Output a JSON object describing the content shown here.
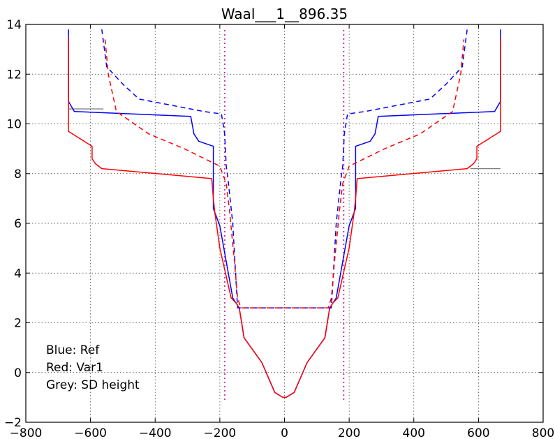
{
  "chart_data": {
    "type": "line",
    "title": "Waal___1__896.35",
    "xlabel": "",
    "ylabel": "",
    "xlim": [
      -800,
      800
    ],
    "ylim": [
      -2,
      14
    ],
    "xticks": [
      -800,
      -600,
      -400,
      -200,
      0,
      200,
      400,
      600,
      800
    ],
    "yticks": [
      -2,
      0,
      2,
      4,
      6,
      8,
      10,
      12,
      14
    ],
    "grid": true,
    "annotations": [
      "Blue: Ref",
      "Red: Var1",
      "Grey: SD height"
    ],
    "annotation_position": "bottom-left",
    "colors": {
      "ref": "#0000ff",
      "var1": "#ff0000",
      "sd": "#808080",
      "marker": "#cc33aa"
    },
    "series": [
      {
        "name": "Ref",
        "color": "#0000ff",
        "style": "solid",
        "x": [
          -668,
          -668,
          -668,
          -650,
          -290,
          -280,
          -265,
          -220,
          -220,
          -200,
          -160,
          -150,
          -140,
          -125,
          -70,
          -30,
          -5,
          5,
          30,
          70,
          125,
          140,
          150,
          160,
          200,
          220,
          220,
          265,
          280,
          290,
          650,
          668,
          668,
          668
        ],
        "y": [
          13.8,
          11.1,
          10.9,
          10.5,
          10.3,
          9.6,
          9.3,
          9.1,
          6.6,
          5.9,
          3.0,
          2.8,
          2.6,
          1.4,
          0.4,
          -0.8,
          -1.0,
          -1.0,
          -0.8,
          0.4,
          1.4,
          2.6,
          2.8,
          3.0,
          5.9,
          6.6,
          9.1,
          9.3,
          9.6,
          10.3,
          10.5,
          10.9,
          11.1,
          13.8
        ]
      },
      {
        "name": "Var1",
        "color": "#ff0000",
        "style": "solid",
        "x": [
          -668,
          -668,
          -595,
          -595,
          -585,
          -565,
          -225,
          -220,
          -215,
          -200,
          -165,
          -150,
          -140,
          -125,
          -70,
          -30,
          -5,
          5,
          30,
          70,
          125,
          140,
          150,
          165,
          200,
          215,
          220,
          225,
          565,
          585,
          595,
          595,
          668,
          668
        ],
        "y": [
          13.5,
          9.7,
          9.1,
          8.6,
          8.4,
          8.2,
          7.8,
          7.0,
          6.4,
          5.0,
          3.0,
          2.8,
          2.6,
          1.4,
          0.4,
          -0.8,
          -1.0,
          -1.0,
          -0.8,
          0.4,
          1.4,
          2.6,
          2.8,
          3.0,
          5.0,
          6.4,
          7.0,
          7.8,
          8.2,
          8.4,
          8.6,
          9.1,
          9.7,
          13.5
        ]
      },
      {
        "name": "Ref dashed",
        "color": "#0000ff",
        "style": "dashed",
        "x": [
          -565,
          -550,
          -500,
          -450,
          -250,
          -195,
          -185,
          -180,
          -175,
          -160,
          -145,
          145,
          160,
          175,
          180,
          185,
          195,
          250,
          450,
          500,
          550,
          565
        ],
        "y": [
          13.8,
          12.3,
          11.6,
          11.0,
          10.5,
          10.4,
          9.6,
          8.3,
          7.8,
          6.0,
          2.6,
          2.6,
          6.0,
          7.8,
          8.3,
          9.6,
          10.4,
          10.5,
          11.0,
          11.6,
          12.3,
          13.8
        ]
      },
      {
        "name": "Var1 dashed",
        "color": "#ff0000",
        "style": "dashed",
        "x": [
          -555,
          -545,
          -520,
          -420,
          -310,
          -200,
          -180,
          -170,
          -155,
          -145,
          -135,
          135,
          145,
          155,
          170,
          180,
          200,
          310,
          420,
          520,
          545,
          555
        ],
        "y": [
          13.4,
          12.0,
          10.5,
          9.6,
          9.0,
          8.3,
          7.6,
          6.5,
          4.5,
          3.0,
          2.6,
          2.6,
          3.0,
          4.5,
          6.5,
          7.6,
          8.3,
          9.0,
          9.6,
          10.5,
          12.0,
          13.4
        ]
      }
    ],
    "sd_height": [
      {
        "x": [
          -668,
          -560
        ],
        "y": [
          10.6,
          10.6
        ]
      },
      {
        "x": [
          575,
          668
        ],
        "y": [
          8.2,
          8.2
        ]
      }
    ],
    "vertical_markers": [
      {
        "x": -185,
        "y": [
          -1.1,
          13.8
        ]
      },
      {
        "x": 183,
        "y": [
          -1.1,
          13.8
        ]
      }
    ]
  }
}
